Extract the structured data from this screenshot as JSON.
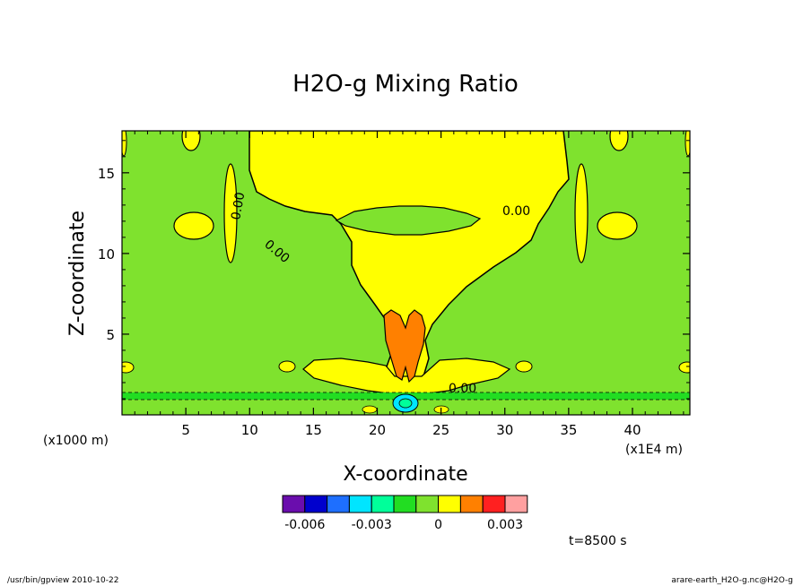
{
  "chart_data": {
    "type": "heatmap",
    "title": "H2O-g Mixing Ratio",
    "xlabel": "X-coordinate",
    "ylabel": "Z-coordinate",
    "x_unit": "(x1E4 m)",
    "y_unit": "(x1000 m)",
    "xlim": [
      0,
      44.5
    ],
    "ylim": [
      0,
      17.6
    ],
    "x_ticks": [
      5,
      10,
      15,
      20,
      25,
      30,
      35,
      40
    ],
    "y_ticks": [
      5,
      10,
      15
    ],
    "contour_labels": [
      "0.00",
      "0.00",
      "0.00",
      "0.00"
    ],
    "annotation_bottom": "0.00",
    "colorbar": {
      "colors": [
        "#6a0dad",
        "#0000cd",
        "#1e6fff",
        "#00e5ff",
        "#00ff9a",
        "#22dd22",
        "#7fe22e",
        "#ffff00",
        "#ff8000",
        "#ff2020",
        "#ffa0a0"
      ],
      "tick_labels": [
        "-0.006",
        "-0.003",
        "0",
        "0.003"
      ]
    },
    "time_label": "t=8500 s",
    "footer_left": "/usr/bin/gpview  2010-10-22",
    "footer_right": "arare-earth_H2O-g.nc@H2O-g"
  }
}
